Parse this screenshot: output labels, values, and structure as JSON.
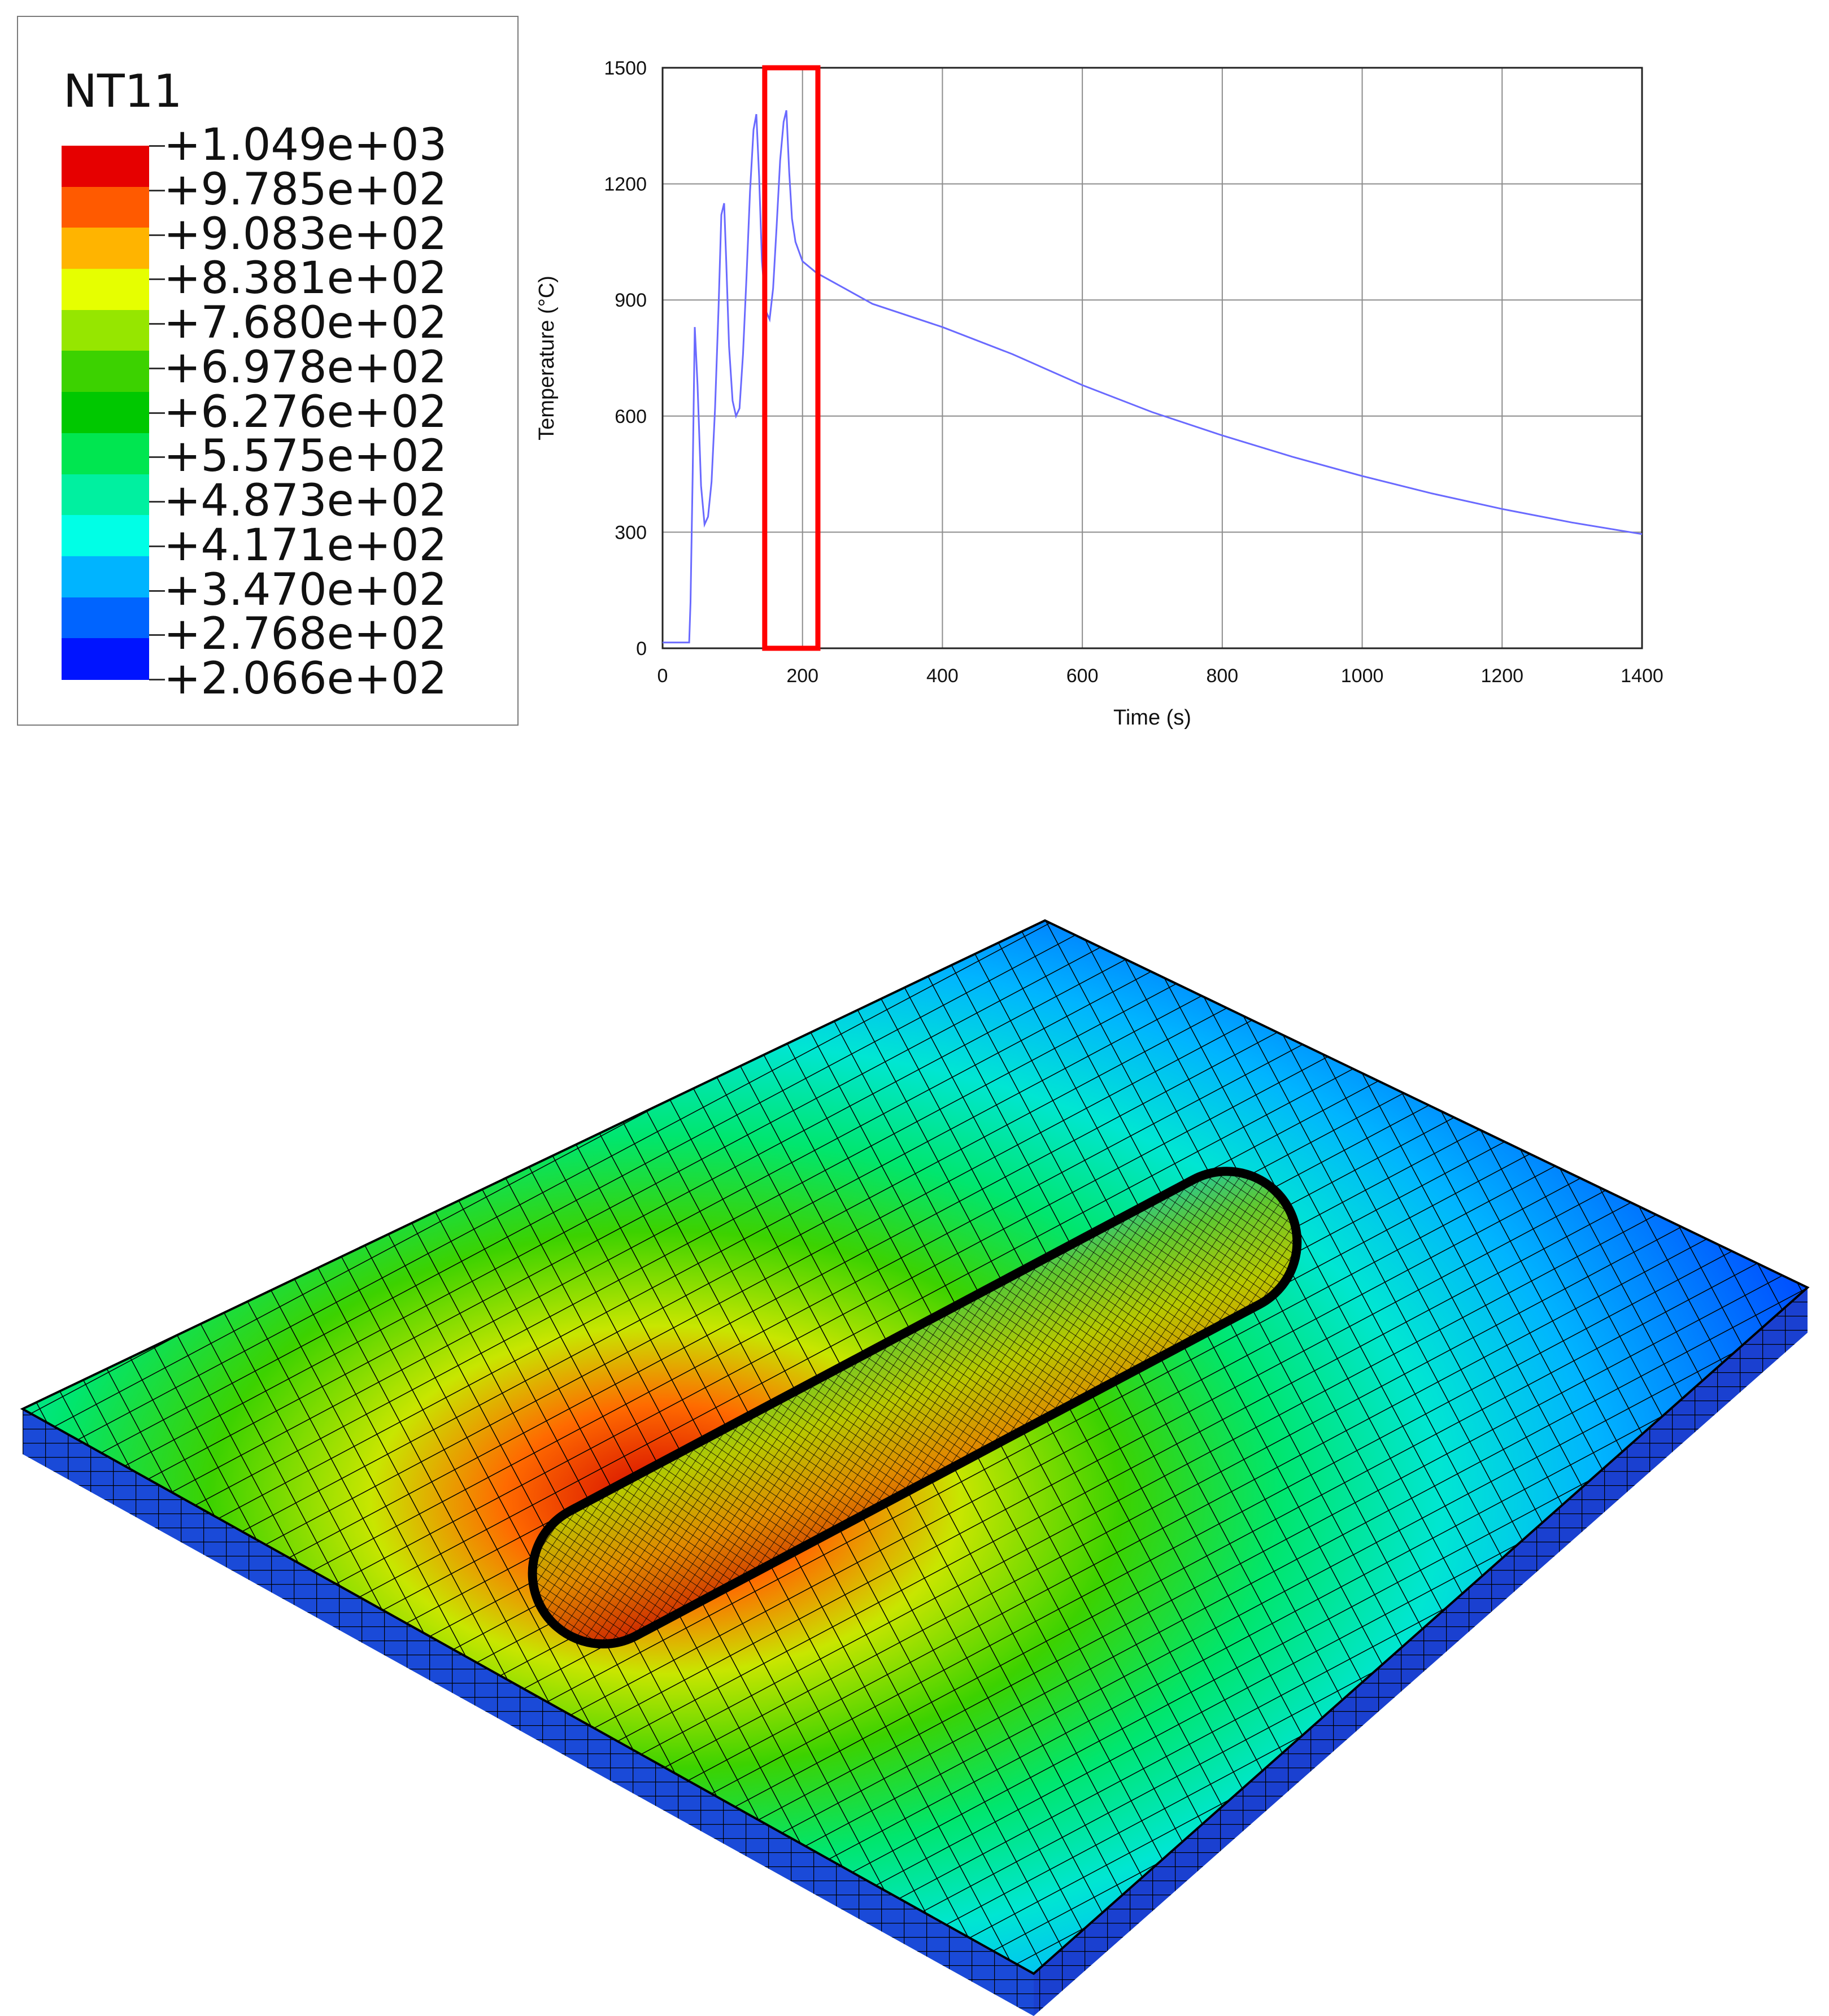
{
  "legend": {
    "title": "NT11",
    "labels": [
      "+1.049e+03",
      "+9.785e+02",
      "+9.083e+02",
      "+8.381e+02",
      "+7.680e+02",
      "+6.978e+02",
      "+6.276e+02",
      "+5.575e+02",
      "+4.873e+02",
      "+4.171e+02",
      "+3.470e+02",
      "+2.768e+02",
      "+2.066e+02"
    ],
    "colors": [
      "#e60000",
      "#ff5a00",
      "#ffb400",
      "#e6ff00",
      "#96e600",
      "#3cd200",
      "#00c800",
      "#00e650",
      "#00f0a0",
      "#00ffe6",
      "#00b4ff",
      "#0064ff",
      "#0014ff"
    ]
  },
  "chart_data": {
    "type": "line",
    "title": "",
    "xlabel": "Time (s)",
    "ylabel": "Temperature (°C)",
    "xlim": [
      0,
      1400
    ],
    "ylim": [
      0,
      1500
    ],
    "xticks": [
      0,
      200,
      400,
      600,
      800,
      1000,
      1200,
      1400
    ],
    "yticks": [
      0,
      300,
      600,
      900,
      1200,
      1500
    ],
    "grid": true,
    "line_color": "#6a6aff",
    "highlight_box": {
      "x_range": [
        146,
        222
      ],
      "y_range": [
        0,
        1500
      ],
      "color": "#ff0000"
    },
    "series": [
      {
        "name": "Temperature",
        "x": [
          0,
          38,
          40,
          43,
          46,
          50,
          55,
          60,
          65,
          70,
          75,
          80,
          84,
          88,
          91,
          95,
          100,
          105,
          110,
          115,
          120,
          125,
          130,
          134,
          138,
          142,
          148,
          153,
          158,
          163,
          168,
          173,
          177,
          181,
          185,
          190,
          200,
          220,
          260,
          300,
          400,
          500,
          600,
          700,
          800,
          900,
          1000,
          1100,
          1200,
          1300,
          1400
        ],
        "values": [
          15,
          15,
          120,
          450,
          830,
          680,
          420,
          320,
          340,
          430,
          620,
          880,
          1120,
          1150,
          1000,
          780,
          640,
          600,
          620,
          760,
          960,
          1180,
          1340,
          1380,
          1220,
          1000,
          870,
          850,
          930,
          1090,
          1260,
          1360,
          1390,
          1230,
          1110,
          1050,
          1000,
          970,
          930,
          890,
          830,
          760,
          680,
          610,
          550,
          495,
          445,
          400,
          360,
          325,
          295
        ]
      }
    ]
  }
}
